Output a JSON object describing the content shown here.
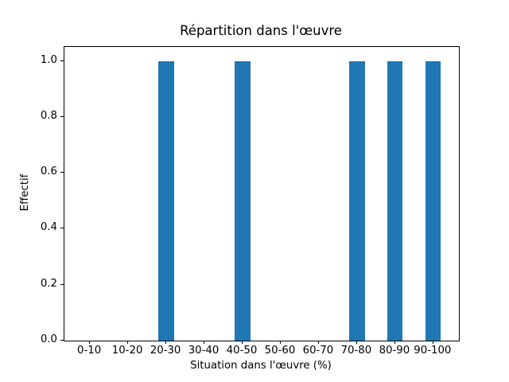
{
  "chart_data": {
    "type": "bar",
    "title": "Répartition dans l'œuvre",
    "xlabel": "Situation dans l'œuvre (%)",
    "ylabel": "Effectif",
    "categories": [
      "0-10",
      "10-20",
      "20-30",
      "30-40",
      "40-50",
      "50-60",
      "60-70",
      "70-80",
      "80-90",
      "90-100"
    ],
    "values": [
      0,
      0,
      1,
      0,
      1,
      0,
      0,
      1,
      1,
      1
    ],
    "ytick_labels": [
      "0.0",
      "0.2",
      "0.4",
      "0.6",
      "0.8",
      "1.0"
    ],
    "ytick_values": [
      0.0,
      0.2,
      0.4,
      0.6,
      0.8,
      1.0
    ],
    "ylim": [
      0,
      1.05
    ],
    "xlim": [
      -0.67,
      9.67
    ],
    "bar_width_units": 0.4,
    "bar_color": "#1f77b4",
    "grid": false
  },
  "colors": {
    "background": "#ffffff",
    "axis": "#000000",
    "text": "#000000"
  }
}
